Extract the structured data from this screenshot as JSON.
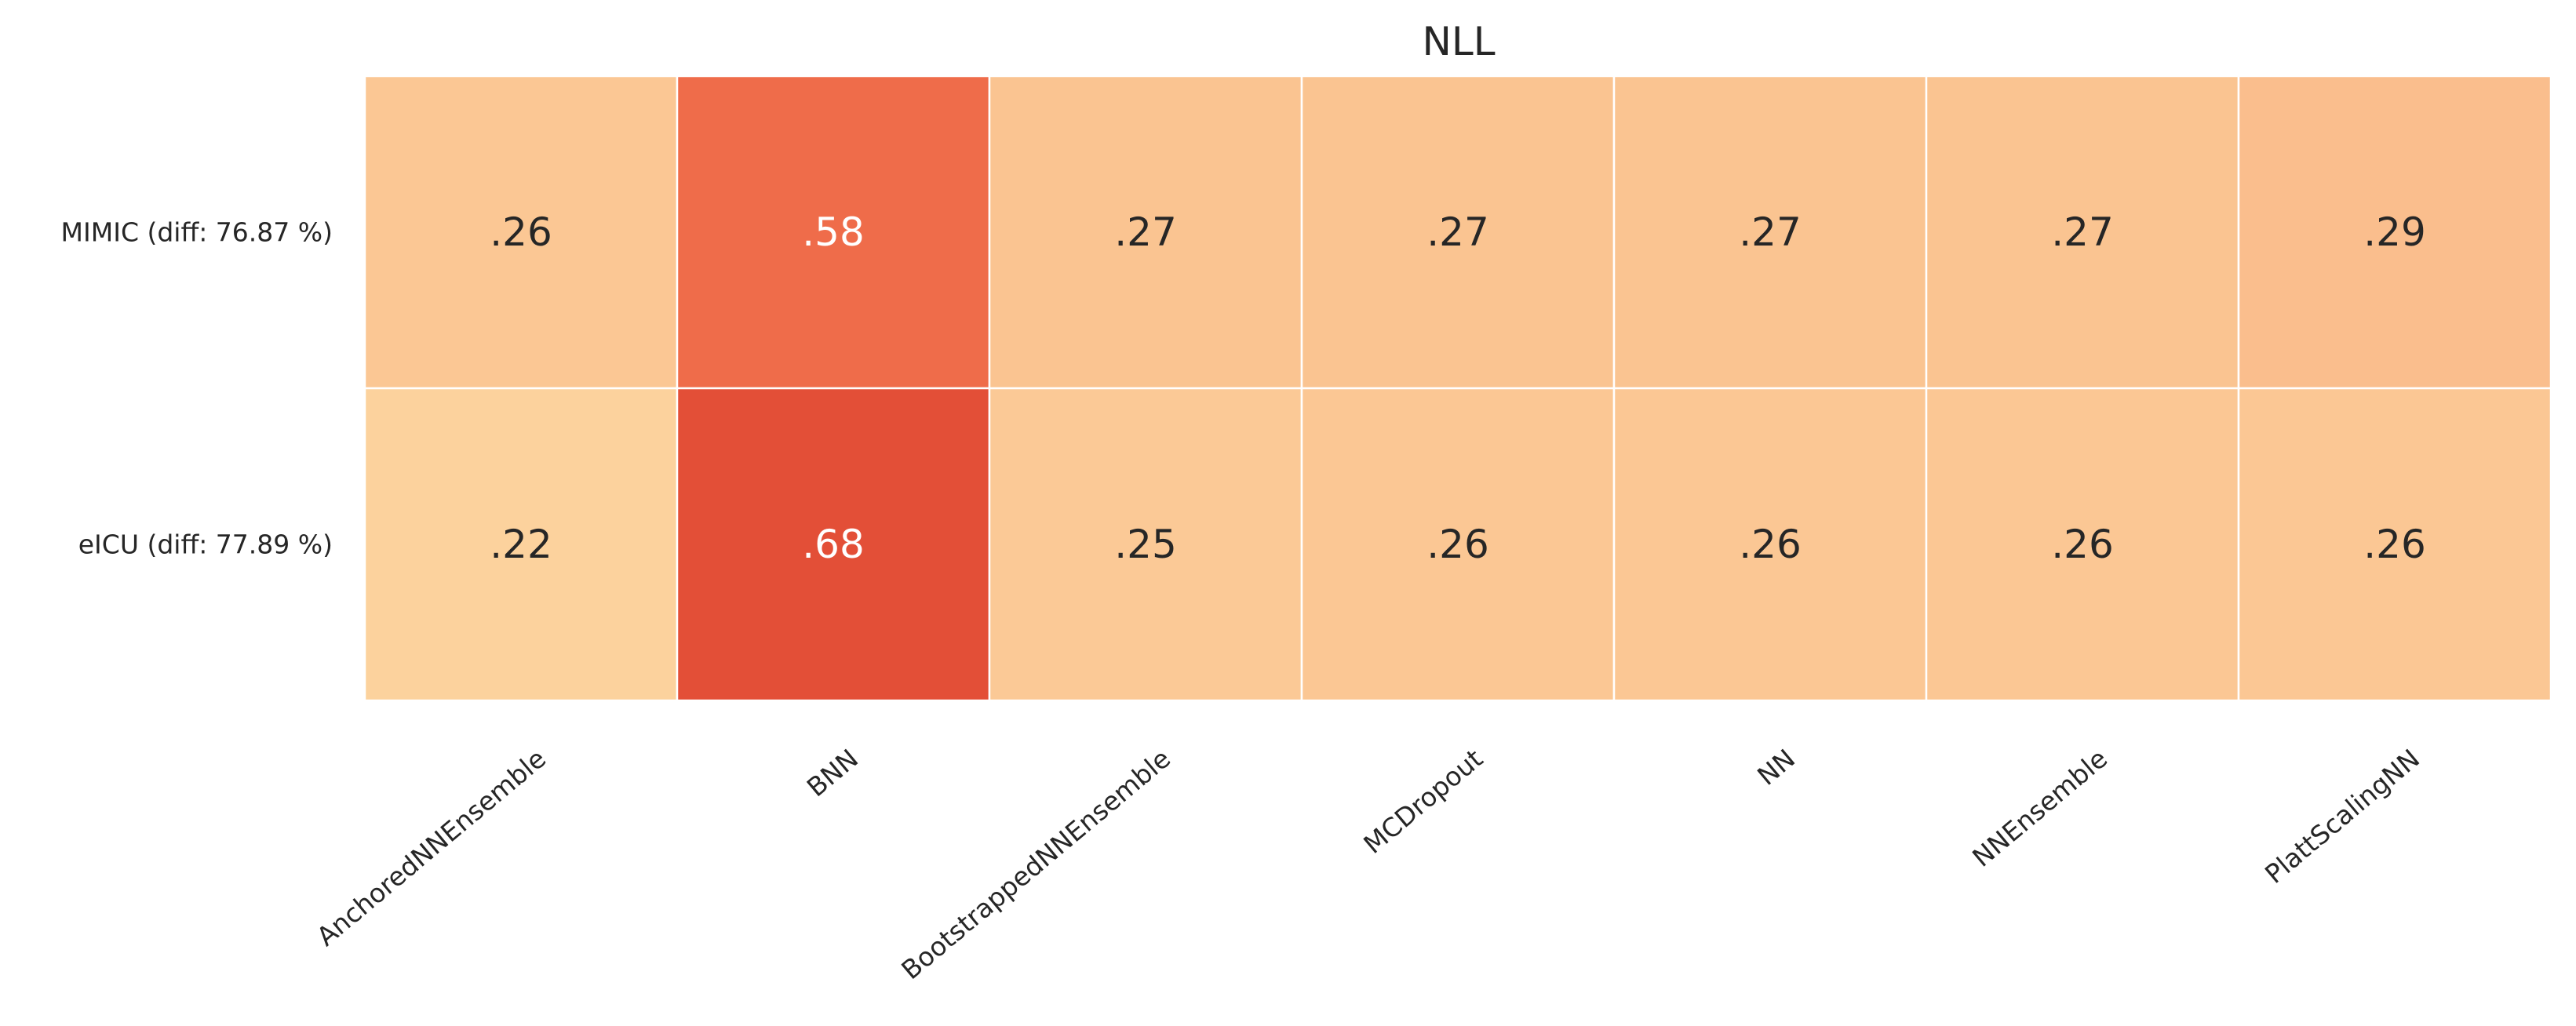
{
  "chart_data": {
    "type": "heatmap",
    "title": "NLL",
    "rows": [
      "MIMIC (diff: 76.87 %)",
      "eICU (diff: 77.89 %)"
    ],
    "columns": [
      "AnchoredNNEnsemble",
      "BNN",
      "BootstrappedNNEnsemble",
      "MCDropout",
      "NN",
      "NNEnsemble",
      "PlattScalingNN"
    ],
    "values": [
      [
        0.26,
        0.58,
        0.27,
        0.27,
        0.27,
        0.27,
        0.29
      ],
      [
        0.22,
        0.68,
        0.25,
        0.26,
        0.26,
        0.26,
        0.26
      ]
    ],
    "value_labels": [
      [
        ".26",
        ".58",
        ".27",
        ".27",
        ".27",
        ".27",
        ".29"
      ],
      [
        ".22",
        ".68",
        ".25",
        ".26",
        ".26",
        ".26",
        ".26"
      ]
    ],
    "colorbar": false,
    "grid": false,
    "colors": {
      "low": "#fcd29d",
      "mid": "#f27450",
      "high": "#e34f37",
      "cell_border": "#ffffff",
      "text_dark": "#262626",
      "text_light": "#ffffff"
    }
  }
}
